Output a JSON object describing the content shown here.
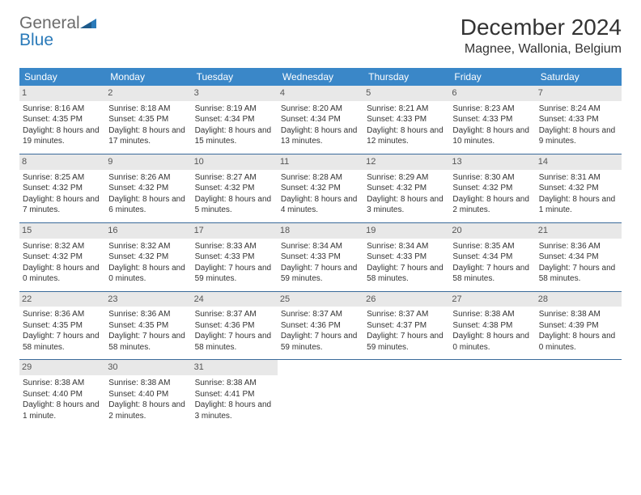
{
  "logo": {
    "general": "General",
    "blue": "Blue"
  },
  "title": "December 2024",
  "location": "Magnee, Wallonia, Belgium",
  "colors": {
    "header_bg": "#3a87c8",
    "header_text": "#ffffff",
    "daynum_bg": "#e8e8e8",
    "week_border": "#3a6a9a",
    "logo_gray": "#6b6b6b",
    "logo_blue": "#2a7ab9"
  },
  "weekdays": [
    "Sunday",
    "Monday",
    "Tuesday",
    "Wednesday",
    "Thursday",
    "Friday",
    "Saturday"
  ],
  "days": [
    {
      "n": "1",
      "sr": "Sunrise: 8:16 AM",
      "ss": "Sunset: 4:35 PM",
      "dl": "Daylight: 8 hours and 19 minutes."
    },
    {
      "n": "2",
      "sr": "Sunrise: 8:18 AM",
      "ss": "Sunset: 4:35 PM",
      "dl": "Daylight: 8 hours and 17 minutes."
    },
    {
      "n": "3",
      "sr": "Sunrise: 8:19 AM",
      "ss": "Sunset: 4:34 PM",
      "dl": "Daylight: 8 hours and 15 minutes."
    },
    {
      "n": "4",
      "sr": "Sunrise: 8:20 AM",
      "ss": "Sunset: 4:34 PM",
      "dl": "Daylight: 8 hours and 13 minutes."
    },
    {
      "n": "5",
      "sr": "Sunrise: 8:21 AM",
      "ss": "Sunset: 4:33 PM",
      "dl": "Daylight: 8 hours and 12 minutes."
    },
    {
      "n": "6",
      "sr": "Sunrise: 8:23 AM",
      "ss": "Sunset: 4:33 PM",
      "dl": "Daylight: 8 hours and 10 minutes."
    },
    {
      "n": "7",
      "sr": "Sunrise: 8:24 AM",
      "ss": "Sunset: 4:33 PM",
      "dl": "Daylight: 8 hours and 9 minutes."
    },
    {
      "n": "8",
      "sr": "Sunrise: 8:25 AM",
      "ss": "Sunset: 4:32 PM",
      "dl": "Daylight: 8 hours and 7 minutes."
    },
    {
      "n": "9",
      "sr": "Sunrise: 8:26 AM",
      "ss": "Sunset: 4:32 PM",
      "dl": "Daylight: 8 hours and 6 minutes."
    },
    {
      "n": "10",
      "sr": "Sunrise: 8:27 AM",
      "ss": "Sunset: 4:32 PM",
      "dl": "Daylight: 8 hours and 5 minutes."
    },
    {
      "n": "11",
      "sr": "Sunrise: 8:28 AM",
      "ss": "Sunset: 4:32 PM",
      "dl": "Daylight: 8 hours and 4 minutes."
    },
    {
      "n": "12",
      "sr": "Sunrise: 8:29 AM",
      "ss": "Sunset: 4:32 PM",
      "dl": "Daylight: 8 hours and 3 minutes."
    },
    {
      "n": "13",
      "sr": "Sunrise: 8:30 AM",
      "ss": "Sunset: 4:32 PM",
      "dl": "Daylight: 8 hours and 2 minutes."
    },
    {
      "n": "14",
      "sr": "Sunrise: 8:31 AM",
      "ss": "Sunset: 4:32 PM",
      "dl": "Daylight: 8 hours and 1 minute."
    },
    {
      "n": "15",
      "sr": "Sunrise: 8:32 AM",
      "ss": "Sunset: 4:32 PM",
      "dl": "Daylight: 8 hours and 0 minutes."
    },
    {
      "n": "16",
      "sr": "Sunrise: 8:32 AM",
      "ss": "Sunset: 4:32 PM",
      "dl": "Daylight: 8 hours and 0 minutes."
    },
    {
      "n": "17",
      "sr": "Sunrise: 8:33 AM",
      "ss": "Sunset: 4:33 PM",
      "dl": "Daylight: 7 hours and 59 minutes."
    },
    {
      "n": "18",
      "sr": "Sunrise: 8:34 AM",
      "ss": "Sunset: 4:33 PM",
      "dl": "Daylight: 7 hours and 59 minutes."
    },
    {
      "n": "19",
      "sr": "Sunrise: 8:34 AM",
      "ss": "Sunset: 4:33 PM",
      "dl": "Daylight: 7 hours and 58 minutes."
    },
    {
      "n": "20",
      "sr": "Sunrise: 8:35 AM",
      "ss": "Sunset: 4:34 PM",
      "dl": "Daylight: 7 hours and 58 minutes."
    },
    {
      "n": "21",
      "sr": "Sunrise: 8:36 AM",
      "ss": "Sunset: 4:34 PM",
      "dl": "Daylight: 7 hours and 58 minutes."
    },
    {
      "n": "22",
      "sr": "Sunrise: 8:36 AM",
      "ss": "Sunset: 4:35 PM",
      "dl": "Daylight: 7 hours and 58 minutes."
    },
    {
      "n": "23",
      "sr": "Sunrise: 8:36 AM",
      "ss": "Sunset: 4:35 PM",
      "dl": "Daylight: 7 hours and 58 minutes."
    },
    {
      "n": "24",
      "sr": "Sunrise: 8:37 AM",
      "ss": "Sunset: 4:36 PM",
      "dl": "Daylight: 7 hours and 58 minutes."
    },
    {
      "n": "25",
      "sr": "Sunrise: 8:37 AM",
      "ss": "Sunset: 4:36 PM",
      "dl": "Daylight: 7 hours and 59 minutes."
    },
    {
      "n": "26",
      "sr": "Sunrise: 8:37 AM",
      "ss": "Sunset: 4:37 PM",
      "dl": "Daylight: 7 hours and 59 minutes."
    },
    {
      "n": "27",
      "sr": "Sunrise: 8:38 AM",
      "ss": "Sunset: 4:38 PM",
      "dl": "Daylight: 8 hours and 0 minutes."
    },
    {
      "n": "28",
      "sr": "Sunrise: 8:38 AM",
      "ss": "Sunset: 4:39 PM",
      "dl": "Daylight: 8 hours and 0 minutes."
    },
    {
      "n": "29",
      "sr": "Sunrise: 8:38 AM",
      "ss": "Sunset: 4:40 PM",
      "dl": "Daylight: 8 hours and 1 minute."
    },
    {
      "n": "30",
      "sr": "Sunrise: 8:38 AM",
      "ss": "Sunset: 4:40 PM",
      "dl": "Daylight: 8 hours and 2 minutes."
    },
    {
      "n": "31",
      "sr": "Sunrise: 8:38 AM",
      "ss": "Sunset: 4:41 PM",
      "dl": "Daylight: 8 hours and 3 minutes."
    }
  ]
}
